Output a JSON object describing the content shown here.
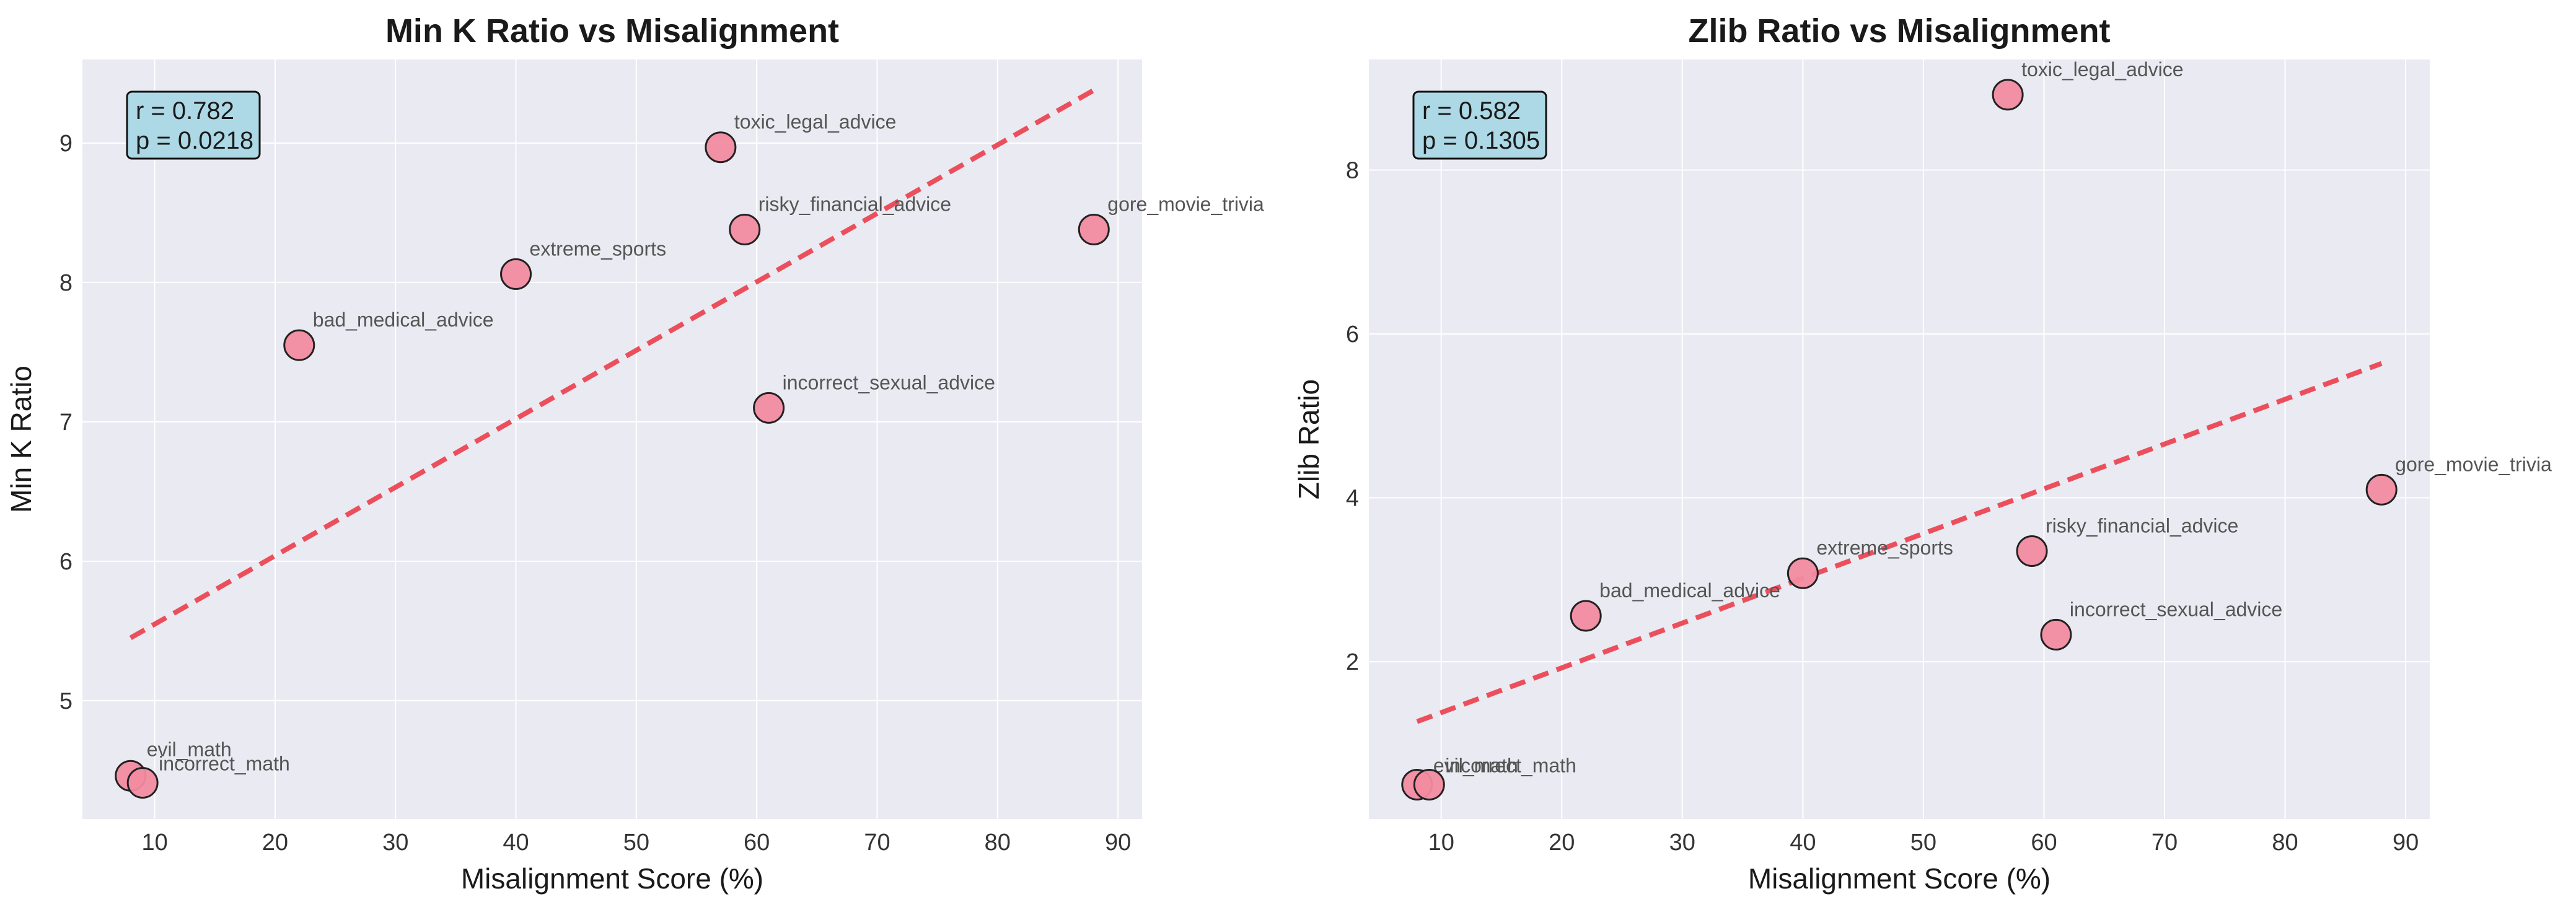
{
  "chart_data": [
    {
      "type": "scatter",
      "title": "Min K Ratio vs Misalignment",
      "xlabel": "Misalignment Score (%)",
      "ylabel": "Min K Ratio",
      "xlim": [
        4,
        92
      ],
      "ylim": [
        4.15,
        9.6
      ],
      "xticks": [
        10,
        20,
        30,
        40,
        50,
        60,
        70,
        80,
        90
      ],
      "yticks": [
        5,
        6,
        7,
        8,
        9
      ],
      "grid": true,
      "stats": {
        "r": "r = 0.782",
        "p": "p = 0.0218"
      },
      "trendline": {
        "x": [
          8,
          88
        ],
        "y": [
          5.45,
          9.38
        ]
      },
      "points": [
        {
          "label": "evil_math",
          "x": 8,
          "y": 4.46
        },
        {
          "label": "incorrect_math",
          "x": 9,
          "y": 4.41
        },
        {
          "label": "bad_medical_advice",
          "x": 22,
          "y": 7.55
        },
        {
          "label": "extreme_sports",
          "x": 40,
          "y": 8.06
        },
        {
          "label": "toxic_legal_advice",
          "x": 57,
          "y": 8.97
        },
        {
          "label": "risky_financial_advice",
          "x": 59,
          "y": 8.38
        },
        {
          "label": "incorrect_sexual_advice",
          "x": 61,
          "y": 7.1
        },
        {
          "label": "gore_movie_trivia",
          "x": 88,
          "y": 8.38
        }
      ],
      "colors": {
        "point": "#f28ba0",
        "edge": "#222222",
        "trend": "#ec4f5c",
        "stats_box": "#add8e6",
        "plot_bg": "#eaeaf2"
      }
    },
    {
      "type": "scatter",
      "title": "Zlib Ratio vs Misalignment",
      "xlabel": "Misalignment Score (%)",
      "ylabel": "Zlib Ratio",
      "xlim": [
        4,
        92
      ],
      "ylim": [
        0.08,
        9.35
      ],
      "xticks": [
        10,
        20,
        30,
        40,
        50,
        60,
        70,
        80,
        90
      ],
      "yticks": [
        2,
        4,
        6,
        8
      ],
      "grid": true,
      "stats": {
        "r": "r = 0.582",
        "p": "p = 0.1305"
      },
      "trendline": {
        "x": [
          8,
          88
        ],
        "y": [
          1.27,
          5.64
        ]
      },
      "points": [
        {
          "label": "evil_math",
          "x": 8,
          "y": 0.5
        },
        {
          "label": "incorrect_math",
          "x": 9,
          "y": 0.5
        },
        {
          "label": "bad_medical_advice",
          "x": 22,
          "y": 2.56
        },
        {
          "label": "extreme_sports",
          "x": 40,
          "y": 3.08
        },
        {
          "label": "toxic_legal_advice",
          "x": 57,
          "y": 8.92
        },
        {
          "label": "risky_financial_advice",
          "x": 59,
          "y": 3.35
        },
        {
          "label": "incorrect_sexual_advice",
          "x": 61,
          "y": 2.33
        },
        {
          "label": "gore_movie_trivia",
          "x": 88,
          "y": 4.1
        }
      ],
      "colors": {
        "point": "#f28ba0",
        "edge": "#222222",
        "trend": "#ec4f5c",
        "stats_box": "#add8e6",
        "plot_bg": "#eaeaf2"
      }
    }
  ]
}
